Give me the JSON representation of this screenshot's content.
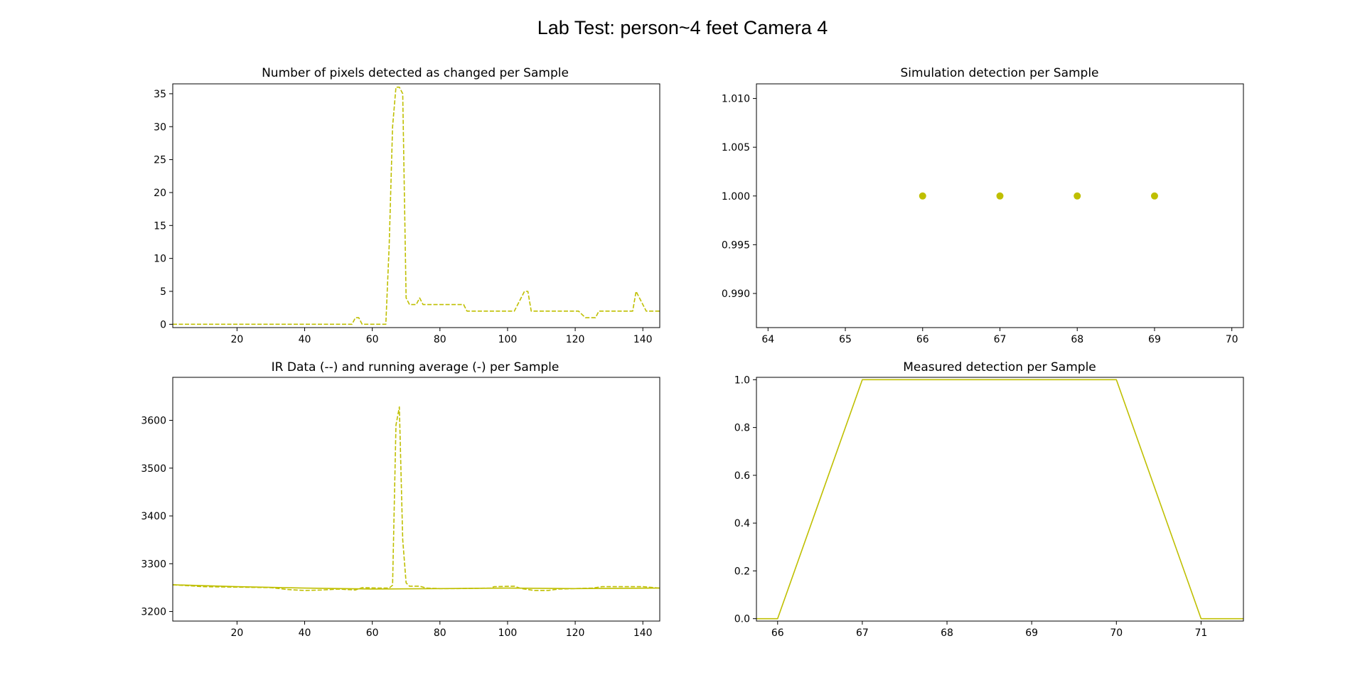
{
  "figure": {
    "suptitle": "Lab Test: person~4 feet Camera 4",
    "line_color": "#bfbf00"
  },
  "chart_data": [
    {
      "id": "pixels",
      "type": "line",
      "title": "Number of pixels detected as changed per Sample",
      "xlim": [
        1,
        145
      ],
      "ylim": [
        -0.5,
        36.5
      ],
      "xticks": [
        20,
        40,
        60,
        80,
        100,
        120,
        140
      ],
      "yticks": [
        0,
        5,
        10,
        15,
        20,
        25,
        30,
        35
      ],
      "series": [
        {
          "style": "dashed",
          "points": [
            [
              1,
              0
            ],
            [
              54,
              0
            ],
            [
              55,
              1
            ],
            [
              56,
              1
            ],
            [
              57,
              0
            ],
            [
              63,
              0
            ],
            [
              64,
              0
            ],
            [
              65,
              12
            ],
            [
              66,
              30
            ],
            [
              67,
              36
            ],
            [
              68,
              36
            ],
            [
              69,
              35
            ],
            [
              70,
              4
            ],
            [
              71,
              3
            ],
            [
              73,
              3
            ],
            [
              74,
              4
            ],
            [
              75,
              3
            ],
            [
              87,
              3
            ],
            [
              88,
              2
            ],
            [
              99,
              2
            ],
            [
              102,
              2
            ],
            [
              104,
              4
            ],
            [
              105,
              5
            ],
            [
              106,
              5
            ],
            [
              107,
              2
            ],
            [
              121,
              2
            ],
            [
              123,
              1
            ],
            [
              126,
              1
            ],
            [
              127,
              2
            ],
            [
              137,
              2
            ],
            [
              138,
              5
            ],
            [
              141,
              2
            ],
            [
              145,
              2
            ]
          ]
        }
      ]
    },
    {
      "id": "simulation",
      "type": "scatter",
      "title": "Simulation detection per Sample",
      "xlim": [
        63.85,
        70.15
      ],
      "ylim": [
        0.9865,
        1.0115
      ],
      "xticks": [
        64,
        65,
        66,
        67,
        68,
        69,
        70
      ],
      "yticks": [
        0.99,
        0.995,
        1.0,
        1.005,
        1.01
      ],
      "ytick_labels": [
        "0.990",
        "0.995",
        "1.000",
        "1.005",
        "1.010"
      ],
      "series": [
        {
          "points": [
            [
              66,
              1
            ],
            [
              67,
              1
            ],
            [
              68,
              1
            ],
            [
              69,
              1
            ]
          ]
        }
      ]
    },
    {
      "id": "ir",
      "type": "line",
      "title": "IR Data (--) and running average (-) per Sample",
      "xlim": [
        1,
        145
      ],
      "ylim": [
        3180,
        3690
      ],
      "xticks": [
        20,
        40,
        60,
        80,
        100,
        120,
        140
      ],
      "yticks": [
        3200,
        3300,
        3400,
        3500,
        3600
      ],
      "series": [
        {
          "style": "dashed",
          "points": [
            [
              1,
              3256
            ],
            [
              10,
              3252
            ],
            [
              20,
              3251
            ],
            [
              30,
              3250
            ],
            [
              35,
              3246
            ],
            [
              40,
              3244
            ],
            [
              45,
              3245
            ],
            [
              50,
              3247
            ],
            [
              55,
              3245
            ],
            [
              57,
              3250
            ],
            [
              62,
              3249
            ],
            [
              65,
              3249
            ],
            [
              66,
              3255
            ],
            [
              67,
              3590
            ],
            [
              68,
              3628
            ],
            [
              69,
              3350
            ],
            [
              70,
              3260
            ],
            [
              71,
              3253
            ],
            [
              74,
              3253
            ],
            [
              76,
              3249
            ],
            [
              80,
              3248
            ],
            [
              85,
              3248
            ],
            [
              95,
              3249
            ],
            [
              96,
              3252
            ],
            [
              102,
              3253
            ],
            [
              104,
              3248
            ],
            [
              108,
              3244
            ],
            [
              112,
              3244
            ],
            [
              115,
              3247
            ],
            [
              120,
              3248
            ],
            [
              125,
              3249
            ],
            [
              128,
              3252
            ],
            [
              140,
              3252
            ],
            [
              145,
              3249
            ]
          ]
        },
        {
          "style": "solid",
          "points": [
            [
              1,
              3256
            ],
            [
              20,
              3252
            ],
            [
              40,
              3249
            ],
            [
              60,
              3247
            ],
            [
              80,
              3248
            ],
            [
              100,
              3249
            ],
            [
              120,
              3248
            ],
            [
              145,
              3249
            ]
          ]
        }
      ]
    },
    {
      "id": "measured",
      "type": "line",
      "title": "Measured detection per Sample",
      "xlim": [
        65.75,
        71.5
      ],
      "ylim": [
        -0.01,
        1.01
      ],
      "xticks": [
        66,
        67,
        68,
        69,
        70,
        71
      ],
      "yticks": [
        0.0,
        0.2,
        0.4,
        0.6,
        0.8,
        1.0
      ],
      "ytick_labels": [
        "0.0",
        "0.2",
        "0.4",
        "0.6",
        "0.8",
        "1.0"
      ],
      "series": [
        {
          "style": "solid",
          "points": [
            [
              65.75,
              0
            ],
            [
              66,
              0
            ],
            [
              67,
              1
            ],
            [
              70,
              1
            ],
            [
              71,
              0
            ],
            [
              71.5,
              0
            ]
          ]
        }
      ]
    }
  ]
}
